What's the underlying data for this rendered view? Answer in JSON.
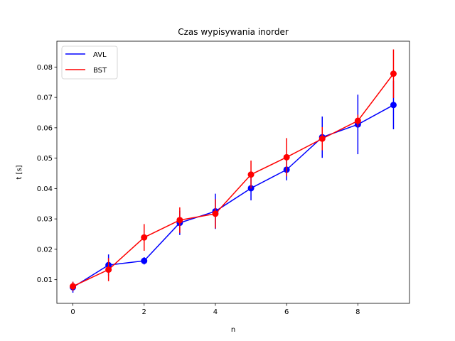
{
  "chart_data": {
    "type": "line",
    "title": "Czas wypisywania inorder",
    "xlabel": "n",
    "ylabel": "t [s]",
    "xlim": [
      -0.45,
      9.45
    ],
    "ylim": [
      0.0022,
      0.0885
    ],
    "xticks": [
      0,
      2,
      4,
      6,
      8
    ],
    "yticks": [
      0.01,
      0.02,
      0.03,
      0.04,
      0.05,
      0.06,
      0.07,
      0.08
    ],
    "xtick_labels": [
      "0",
      "2",
      "4",
      "6",
      "8"
    ],
    "ytick_labels": [
      "0.01",
      "0.02",
      "0.03",
      "0.04",
      "0.05",
      "0.06",
      "0.07",
      "0.08"
    ],
    "grid": false,
    "legend_position": "top-left",
    "x": [
      0,
      1,
      2,
      3,
      4,
      5,
      6,
      7,
      8,
      9
    ],
    "series": [
      {
        "name": "AVL",
        "color": "#0000ff",
        "values": [
          0.0075,
          0.0148,
          0.0162,
          0.0287,
          0.0325,
          0.0401,
          0.0462,
          0.0569,
          0.0611,
          0.0675
        ],
        "errors": [
          0.0018,
          0.0035,
          0.0012,
          0.004,
          0.0058,
          0.004,
          0.0035,
          0.0068,
          0.0098,
          0.008
        ]
      },
      {
        "name": "BST",
        "color": "#ff0000",
        "values": [
          0.0078,
          0.0133,
          0.0239,
          0.0296,
          0.0317,
          0.0446,
          0.0503,
          0.0564,
          0.0623,
          0.0778
        ],
        "errors": [
          0.0015,
          0.0038,
          0.0044,
          0.0042,
          0.0048,
          0.0046,
          0.0063,
          0.0038,
          0.002,
          0.008
        ]
      }
    ]
  }
}
